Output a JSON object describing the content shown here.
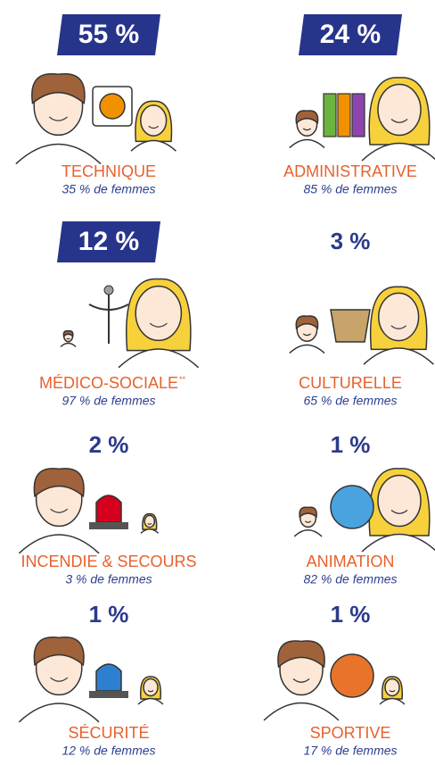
{
  "items": [
    {
      "share": "55 %",
      "name": "TECHNIQUE",
      "women": "35 % de femmes",
      "highlight": true
    },
    {
      "share": "24 %",
      "name": "ADMINISTRATIVE",
      "women": "85 % de femmes",
      "highlight": true
    },
    {
      "share": "12 %",
      "name": "MÉDICO-SOCIALE",
      "note": "**",
      "women": "97 % de femmes",
      "highlight": true
    },
    {
      "share": "3 %",
      "name": "CULTURELLE",
      "women": "65 % de femmes",
      "highlight": false
    },
    {
      "share": "2 %",
      "name": "INCENDIE & SECOURS",
      "women": "3 % de femmes",
      "highlight": false
    },
    {
      "share": "1 %",
      "name": "ANIMATION",
      "women": "82 % de femmes",
      "highlight": false
    },
    {
      "share": "1 %",
      "name": "SÉCURITÉ",
      "women": "12 % de femmes",
      "highlight": false
    },
    {
      "share": "1 %",
      "name": "SPORTIVE",
      "women": "17 % de femmes",
      "highlight": false
    }
  ]
}
